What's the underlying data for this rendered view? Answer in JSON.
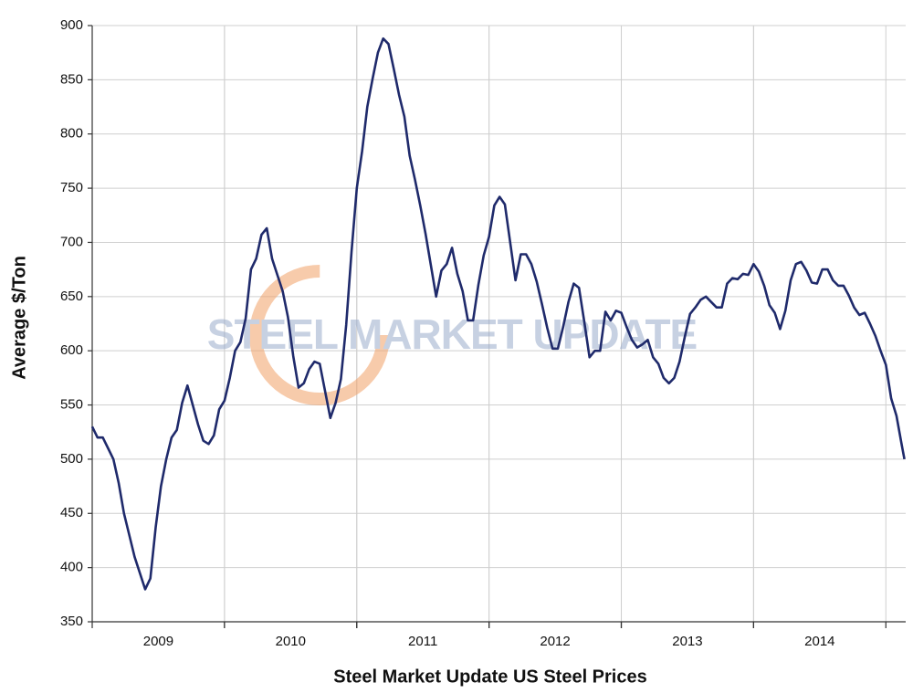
{
  "chart_data": {
    "type": "line",
    "title": "Steel Market Update US Steel Prices",
    "y_label": "Average $/Ton",
    "watermark": "STEEL MARKET UPDATE",
    "color": "#1f2a6b",
    "grid": true,
    "xlim": [
      2009,
      2015.15
    ],
    "ylim": [
      350,
      900
    ],
    "yticks": [
      350,
      400,
      450,
      500,
      550,
      600,
      650,
      700,
      750,
      800,
      850,
      900
    ],
    "xticks": [
      {
        "value": 2009.5,
        "label": "2009"
      },
      {
        "value": 2010.5,
        "label": "2010"
      },
      {
        "value": 2011.5,
        "label": "2011"
      },
      {
        "value": 2012.5,
        "label": "2012"
      },
      {
        "value": 2013.5,
        "label": "2013"
      },
      {
        "value": 2014.5,
        "label": "2014"
      }
    ],
    "x": [
      2009.0,
      2009.04,
      2009.08,
      2009.12,
      2009.16,
      2009.2,
      2009.24,
      2009.28,
      2009.32,
      2009.36,
      2009.4,
      2009.44,
      2009.48,
      2009.52,
      2009.56,
      2009.6,
      2009.64,
      2009.68,
      2009.72,
      2009.76,
      2009.8,
      2009.84,
      2009.88,
      2009.92,
      2009.96,
      2010.0,
      2010.04,
      2010.08,
      2010.12,
      2010.16,
      2010.2,
      2010.24,
      2010.28,
      2010.32,
      2010.36,
      2010.4,
      2010.44,
      2010.48,
      2010.52,
      2010.56,
      2010.6,
      2010.64,
      2010.68,
      2010.72,
      2010.76,
      2010.8,
      2010.84,
      2010.88,
      2010.92,
      2010.96,
      2011.0,
      2011.04,
      2011.08,
      2011.12,
      2011.16,
      2011.2,
      2011.24,
      2011.28,
      2011.32,
      2011.36,
      2011.4,
      2011.44,
      2011.48,
      2011.52,
      2011.56,
      2011.6,
      2011.64,
      2011.68,
      2011.72,
      2011.76,
      2011.8,
      2011.84,
      2011.88,
      2011.92,
      2011.96,
      2012.0,
      2012.04,
      2012.08,
      2012.12,
      2012.16,
      2012.2,
      2012.24,
      2012.28,
      2012.32,
      2012.36,
      2012.4,
      2012.44,
      2012.48,
      2012.52,
      2012.56,
      2012.6,
      2012.64,
      2012.68,
      2012.72,
      2012.76,
      2012.8,
      2012.84,
      2012.88,
      2012.92,
      2012.96,
      2013.0,
      2013.04,
      2013.08,
      2013.12,
      2013.16,
      2013.2,
      2013.24,
      2013.28,
      2013.32,
      2013.36,
      2013.4,
      2013.44,
      2013.48,
      2013.52,
      2013.56,
      2013.6,
      2013.64,
      2013.68,
      2013.72,
      2013.76,
      2013.8,
      2013.84,
      2013.88,
      2013.92,
      2013.96,
      2014.0,
      2014.04,
      2014.08,
      2014.12,
      2014.16,
      2014.2,
      2014.24,
      2014.28,
      2014.32,
      2014.36,
      2014.4,
      2014.44,
      2014.48,
      2014.52,
      2014.56,
      2014.6,
      2014.64,
      2014.68,
      2014.72,
      2014.76,
      2014.8,
      2014.84,
      2014.88,
      2014.92,
      2014.96,
      2015.0,
      2015.04,
      2015.08,
      2015.12,
      2015.14
    ],
    "values": [
      530,
      520,
      520,
      510,
      500,
      478,
      450,
      430,
      410,
      395,
      380,
      390,
      437,
      475,
      500,
      520,
      527,
      552,
      568,
      550,
      532,
      517,
      514,
      522,
      546,
      554,
      575,
      600,
      608,
      630,
      675,
      685,
      707,
      713,
      685,
      670,
      655,
      631,
      595,
      566,
      570,
      583,
      590,
      588,
      563,
      538,
      552,
      574,
      624,
      691,
      750,
      784,
      825,
      851,
      875,
      888,
      883,
      860,
      836,
      816,
      780,
      758,
      734,
      708,
      679,
      650,
      674,
      680,
      695,
      671,
      655,
      628,
      628,
      661,
      688,
      705,
      734,
      742,
      735,
      700,
      665,
      689,
      689,
      680,
      664,
      643,
      621,
      602,
      602,
      622,
      645,
      662,
      658,
      627,
      594,
      600,
      600,
      636,
      628,
      637,
      635,
      622,
      610,
      603,
      606,
      610,
      594,
      588,
      575,
      570,
      575,
      590,
      613,
      634,
      640,
      647,
      650,
      645,
      640,
      640,
      662,
      667,
      666,
      671,
      670,
      680,
      673,
      660,
      642,
      635,
      620,
      637,
      665,
      680,
      682,
      674,
      663,
      662,
      675,
      675,
      665,
      660,
      660,
      651,
      640,
      633,
      635,
      625,
      614,
      600,
      587,
      556,
      540,
      513,
      500
    ]
  }
}
